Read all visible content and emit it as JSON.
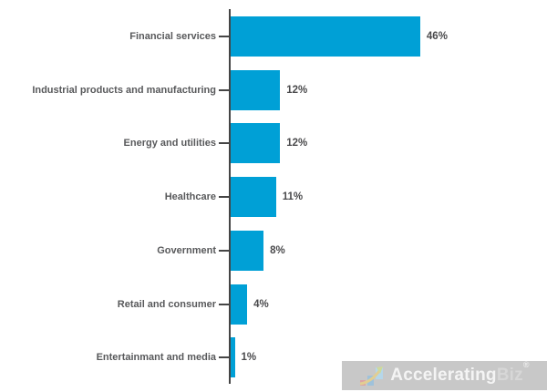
{
  "chart_data": {
    "type": "bar",
    "orientation": "horizontal",
    "title": "",
    "xlabel": "",
    "ylabel": "",
    "categories": [
      "Financial services",
      "Industrial products and manufacturing",
      "Energy and utilities",
      "Healthcare",
      "Government",
      "Retail and consumer",
      "Entertainmant and media"
    ],
    "values": [
      46,
      12,
      12,
      11,
      8,
      4,
      1
    ],
    "value_labels": [
      "46%",
      "12%",
      "12%",
      "11%",
      "8%",
      "4%",
      "1%"
    ],
    "xlim": [
      0,
      50
    ],
    "grid": false,
    "legend": "none",
    "bar_color": "#00A0D6",
    "axis_color": "#454545",
    "category_label_color": "#58595B",
    "value_label_color": "#4A4A4C"
  },
  "watermark": {
    "brand_first": "Accelerating",
    "brand_second": "Biz",
    "registered_mark": "®",
    "background_color": "#C8C8C8",
    "logo_icon": "bar-chart-rising-arrow-icon"
  }
}
